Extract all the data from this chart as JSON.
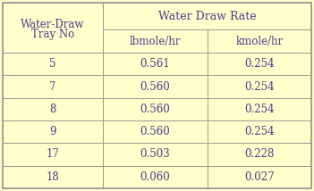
{
  "col0_header_line1": "Water-Draw",
  "col0_header_line2": "Tray No",
  "top_header": "Water Draw Rate",
  "col1_header": "lbmole/hr",
  "col2_header": "kmole/hr",
  "rows": [
    [
      "5",
      "0.561",
      "0.254"
    ],
    [
      "7",
      "0.560",
      "0.254"
    ],
    [
      "8",
      "0.560",
      "0.254"
    ],
    [
      "9",
      "0.560",
      "0.254"
    ],
    [
      "17",
      "0.503",
      "0.228"
    ],
    [
      "18",
      "0.060",
      "0.027"
    ]
  ],
  "bg_color": "#ffffcc",
  "border_color": "#999999",
  "text_color": "#4b3b8c",
  "font_size": 8.5
}
